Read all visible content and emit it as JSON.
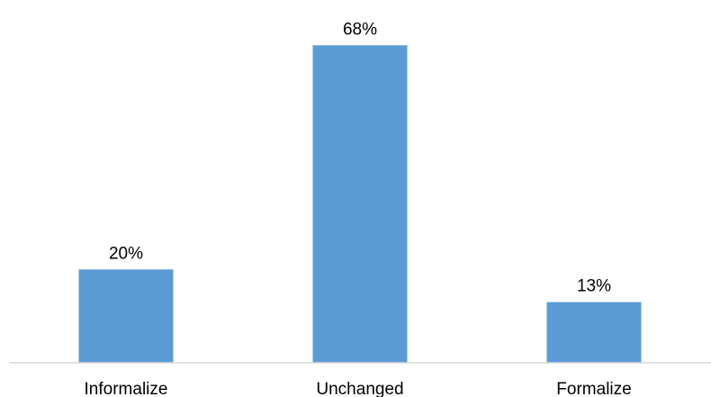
{
  "chart_data": {
    "type": "bar",
    "categories": [
      "Informalize",
      "Unchanged",
      "Formalize"
    ],
    "values": [
      20,
      68,
      13
    ],
    "data_labels": [
      "20%",
      "68%",
      "13%"
    ],
    "ylim": [
      0,
      75
    ],
    "grid": false,
    "bar_color": "#5b9bd5",
    "axis_color": "#d9d9d9"
  }
}
